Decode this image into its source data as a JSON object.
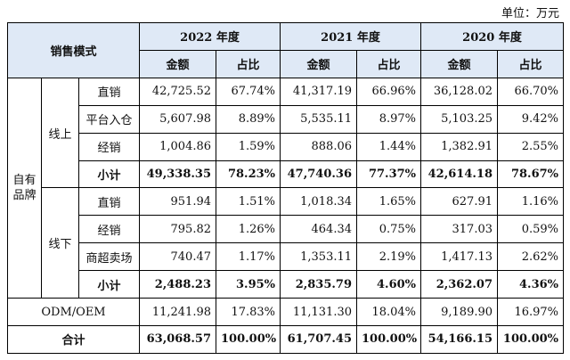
{
  "unit_label": "单位：万元",
  "header": {
    "mode_label": "销售模式",
    "years": [
      "2022 年度",
      "2021 年度",
      "2020 年度"
    ],
    "amount_label": "金额",
    "share_label": "占比"
  },
  "groups": {
    "own_brand": "自有品牌",
    "online": "线上",
    "offline": "线下"
  },
  "online_rows": [
    {
      "label": "直销",
      "v": [
        "42,725.52",
        "67.74%",
        "41,317.19",
        "66.96%",
        "36,128.02",
        "66.70%"
      ]
    },
    {
      "label": "平台入仓",
      "v": [
        "5,607.98",
        "8.89%",
        "5,535.11",
        "8.97%",
        "5,103.25",
        "9.42%"
      ]
    },
    {
      "label": "经销",
      "v": [
        "1,004.86",
        "1.59%",
        "888.06",
        "1.44%",
        "1,382.91",
        "2.55%"
      ]
    },
    {
      "label": "小计",
      "v": [
        "49,338.35",
        "78.23%",
        "47,740.36",
        "77.37%",
        "42,614.18",
        "78.67%"
      ]
    }
  ],
  "offline_rows": [
    {
      "label": "直销",
      "v": [
        "951.94",
        "1.51%",
        "1,018.34",
        "1.65%",
        "627.91",
        "1.16%"
      ]
    },
    {
      "label": "经销",
      "v": [
        "795.82",
        "1.26%",
        "464.34",
        "0.75%",
        "317.03",
        "0.59%"
      ]
    },
    {
      "label": "商超卖场",
      "v": [
        "740.47",
        "1.17%",
        "1,353.11",
        "2.19%",
        "1,417.13",
        "2.62%"
      ]
    },
    {
      "label": "小计",
      "v": [
        "2,488.23",
        "3.95%",
        "2,835.79",
        "4.60%",
        "2,362.07",
        "4.36%"
      ]
    }
  ],
  "odm_row": {
    "label": "ODM/OEM",
    "v": [
      "11,241.98",
      "17.83%",
      "11,131.30",
      "18.04%",
      "9,189.90",
      "16.97%"
    ]
  },
  "total_row": {
    "label": "合计",
    "v": [
      "63,068.57",
      "100.00%",
      "61,707.45",
      "100.00%",
      "54,166.15",
      "100.00%"
    ]
  }
}
